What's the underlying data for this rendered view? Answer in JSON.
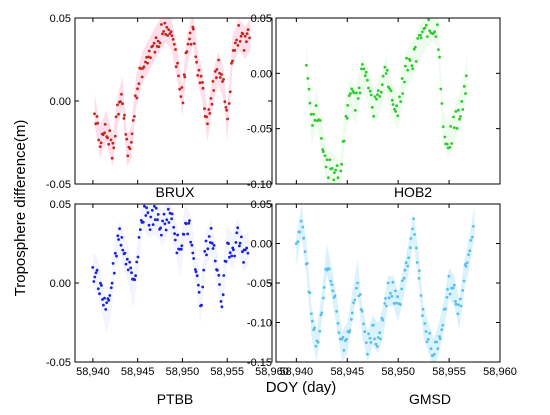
{
  "figure": {
    "ylabel": "Troposphere difference(m)",
    "xlabel": "DOY (day)"
  },
  "chart_data": [
    {
      "type": "scatter",
      "panel": "top-left",
      "title": "BRUX",
      "color": "#c0281c",
      "band_color": "#ffd3e6",
      "xlim": [
        58938,
        58960
      ],
      "ylim": [
        -0.05,
        0.05
      ],
      "yticks": [
        "0.05",
        "0.00",
        "-0.05"
      ],
      "xticks": [],
      "grid": false,
      "anchors": [
        [
          58940.2,
          -0.005
        ],
        [
          58940.8,
          -0.025
        ],
        [
          58941.5,
          -0.015
        ],
        [
          58942.2,
          -0.03
        ],
        [
          58942.8,
          -0.005
        ],
        [
          58943.3,
          0.005
        ],
        [
          58943.8,
          -0.03
        ],
        [
          58944.3,
          -0.025
        ],
        [
          58944.8,
          0.005
        ],
        [
          58945.5,
          0.02
        ],
        [
          58946.5,
          0.03
        ],
        [
          58947.5,
          0.04
        ],
        [
          58948.2,
          0.045
        ],
        [
          58948.8,
          0.04
        ],
        [
          58949.5,
          0.02
        ],
        [
          58950.0,
          0.0
        ],
        [
          58950.5,
          0.03
        ],
        [
          58951.2,
          0.045
        ],
        [
          58951.7,
          0.02
        ],
        [
          58952.2,
          0.01
        ],
        [
          58952.8,
          -0.015
        ],
        [
          58953.5,
          0.01
        ],
        [
          58954.0,
          0.02
        ],
        [
          58954.6,
          0.01
        ],
        [
          58955.0,
          -0.015
        ],
        [
          58955.6,
          0.03
        ],
        [
          58956.3,
          0.04
        ],
        [
          58957.0,
          0.035
        ],
        [
          58957.6,
          0.04
        ]
      ],
      "spread": 0.006,
      "step": 0.12,
      "seed": 11
    },
    {
      "type": "scatter",
      "panel": "top-right",
      "title": "HOB2",
      "color": "#2ec92e",
      "band_color": "#e8fbe8",
      "xlim": [
        58938,
        58960
      ],
      "ylim": [
        -0.1,
        0.05
      ],
      "yticks": [
        "0.05",
        "0.00",
        "-0.05",
        "-0.10"
      ],
      "xticks": [],
      "grid": false,
      "anchors": [
        [
          58941.0,
          0.01
        ],
        [
          58941.5,
          -0.05
        ],
        [
          58942.0,
          -0.03
        ],
        [
          58942.5,
          -0.06
        ],
        [
          58943.0,
          -0.085
        ],
        [
          58943.8,
          -0.09
        ],
        [
          58944.3,
          -0.095
        ],
        [
          58944.8,
          -0.04
        ],
        [
          58945.3,
          -0.02
        ],
        [
          58945.8,
          -0.03
        ],
        [
          58946.5,
          0.0
        ],
        [
          58947.0,
          -0.01
        ],
        [
          58947.6,
          -0.03
        ],
        [
          58948.2,
          -0.02
        ],
        [
          58948.8,
          0.0
        ],
        [
          58949.4,
          -0.025
        ],
        [
          58950.0,
          -0.035
        ],
        [
          58950.6,
          0.0
        ],
        [
          58951.2,
          0.01
        ],
        [
          58951.8,
          0.02
        ],
        [
          58952.3,
          0.03
        ],
        [
          58952.8,
          0.04
        ],
        [
          58953.4,
          0.045
        ],
        [
          58953.9,
          0.04
        ],
        [
          58954.4,
          -0.05
        ],
        [
          58955.0,
          -0.06
        ],
        [
          58955.6,
          -0.045
        ],
        [
          58956.2,
          -0.03
        ],
        [
          58956.8,
          0.0
        ]
      ],
      "spread": 0.01,
      "step": 0.12,
      "seed": 23
    },
    {
      "type": "scatter",
      "panel": "bottom-left",
      "title": "PTBB",
      "color": "#1a22d6",
      "band_color": "#eef0ff",
      "xlim": [
        58938,
        58960
      ],
      "ylim": [
        -0.05,
        0.05
      ],
      "yticks": [
        "0.05",
        "0.00",
        "-0.05"
      ],
      "xticks": [
        "58,940",
        "58,945",
        "58,950",
        "58,955",
        "58,960"
      ],
      "grid": false,
      "anchors": [
        [
          58940.0,
          0.008
        ],
        [
          58940.5,
          0.005
        ],
        [
          58941.0,
          -0.008
        ],
        [
          58941.5,
          -0.02
        ],
        [
          58942.0,
          -0.01
        ],
        [
          58942.5,
          0.02
        ],
        [
          58943.0,
          0.028
        ],
        [
          58943.5,
          0.02
        ],
        [
          58944.0,
          0.01
        ],
        [
          58944.5,
          -0.005
        ],
        [
          58945.0,
          0.015
        ],
        [
          58945.5,
          0.045
        ],
        [
          58946.3,
          0.04
        ],
        [
          58947.0,
          0.042
        ],
        [
          58947.8,
          0.035
        ],
        [
          58948.5,
          0.045
        ],
        [
          58949.2,
          0.03
        ],
        [
          58949.8,
          0.015
        ],
        [
          58950.3,
          0.04
        ],
        [
          58951.0,
          0.03
        ],
        [
          58951.6,
          0.005
        ],
        [
          58952.0,
          -0.015
        ],
        [
          58952.6,
          0.02
        ],
        [
          58953.2,
          0.03
        ],
        [
          58953.8,
          0.01
        ],
        [
          58954.4,
          -0.01
        ],
        [
          58955.0,
          0.025
        ],
        [
          58955.6,
          0.02
        ],
        [
          58956.2,
          0.03
        ],
        [
          58956.8,
          0.018
        ],
        [
          58957.4,
          0.022
        ]
      ],
      "spread": 0.007,
      "step": 0.12,
      "seed": 37
    },
    {
      "type": "scatter",
      "panel": "bottom-right",
      "title": "GMSD",
      "color": "#5bc0e8",
      "band_color": "#cdeefa",
      "xlim": [
        58938,
        58960
      ],
      "ylim": [
        -0.15,
        0.05
      ],
      "yticks": [
        "0.05",
        "0.00",
        "-0.05",
        "-0.10",
        "-0.15"
      ],
      "xticks": [
        "58,940",
        "58,945",
        "58,950",
        "58,955",
        "58,960"
      ],
      "grid": false,
      "anchors": [
        [
          58940.0,
          -0.01
        ],
        [
          58940.5,
          0.03
        ],
        [
          58941.0,
          -0.02
        ],
        [
          58941.5,
          -0.1
        ],
        [
          58942.0,
          -0.13
        ],
        [
          58942.5,
          -0.08
        ],
        [
          58943.0,
          -0.02
        ],
        [
          58943.5,
          -0.05
        ],
        [
          58944.0,
          -0.09
        ],
        [
          58944.5,
          -0.13
        ],
        [
          58945.0,
          -0.12
        ],
        [
          58945.5,
          -0.08
        ],
        [
          58946.0,
          -0.04
        ],
        [
          58946.5,
          -0.1
        ],
        [
          58947.0,
          -0.13
        ],
        [
          58947.5,
          -0.11
        ],
        [
          58948.0,
          -0.12
        ],
        [
          58948.5,
          -0.1
        ],
        [
          58949.0,
          -0.06
        ],
        [
          58949.5,
          -0.06
        ],
        [
          58950.0,
          -0.08
        ],
        [
          58950.5,
          -0.05
        ],
        [
          58951.0,
          -0.02
        ],
        [
          58951.5,
          0.02
        ],
        [
          58952.0,
          -0.03
        ],
        [
          58952.5,
          -0.1
        ],
        [
          58953.0,
          -0.12
        ],
        [
          58953.5,
          -0.14
        ],
        [
          58954.0,
          -0.12
        ],
        [
          58954.5,
          -0.09
        ],
        [
          58955.0,
          -0.05
        ],
        [
          58955.5,
          -0.06
        ],
        [
          58956.0,
          -0.09
        ],
        [
          58956.5,
          -0.04
        ],
        [
          58957.0,
          -0.01
        ],
        [
          58957.5,
          0.03
        ]
      ],
      "spread": 0.012,
      "step": 0.12,
      "seed": 51
    }
  ]
}
